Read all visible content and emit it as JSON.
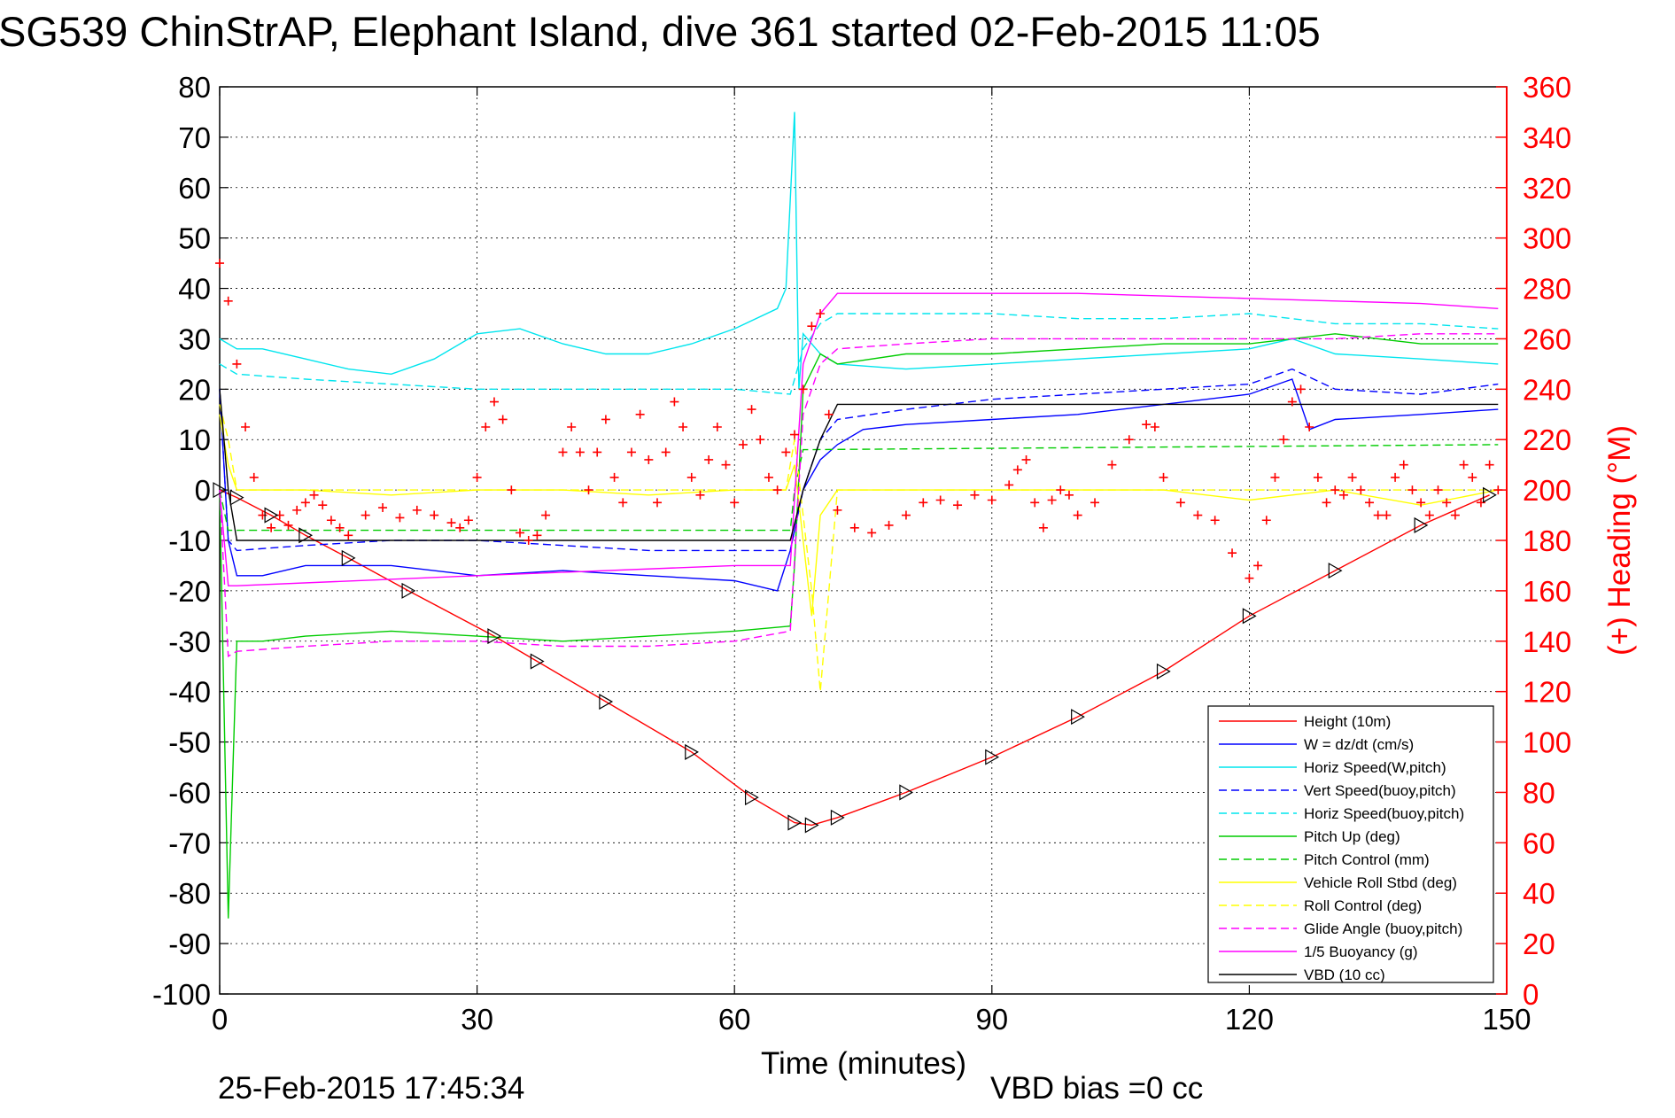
{
  "chart_data": {
    "type": "line",
    "title": "SG539 ChinStrAP, Elephant Island, dive 361 started 02-Feb-2015 11:05",
    "xlabel": "Time (minutes)",
    "ylabel_right": "(+) Heading (°M)",
    "xlim": [
      0,
      150
    ],
    "ylim_left": [
      -100,
      80
    ],
    "ylim_right": [
      0,
      360
    ],
    "x_ticks": [
      0,
      30,
      60,
      90,
      120,
      150
    ],
    "y_ticks_left": [
      80,
      70,
      60,
      50,
      40,
      30,
      20,
      10,
      0,
      -10,
      -20,
      -30,
      -40,
      -50,
      -60,
      -70,
      -80,
      -90,
      -100
    ],
    "y_ticks_right": [
      360,
      340,
      320,
      300,
      280,
      260,
      240,
      220,
      200,
      180,
      160,
      140,
      120,
      100,
      80,
      60,
      40,
      20,
      0
    ],
    "grid": true,
    "legend_position": "bottom-right",
    "footer_date": "25-Feb-2015 17:45:34",
    "footer_bias": "VBD bias =0 cc",
    "series": [
      {
        "name": "Height (10m)",
        "color": "#ff0000",
        "dash": "solid",
        "x": [
          0,
          2,
          6,
          10,
          15,
          22,
          32,
          37,
          45,
          55,
          62,
          67,
          69,
          72,
          80,
          90,
          100,
          110,
          120,
          130,
          140,
          148
        ],
        "y": [
          0,
          -1.5,
          -5,
          -9,
          -13.5,
          -20,
          -29,
          -34,
          -42,
          -52,
          -61,
          -66,
          -66.5,
          -65,
          -60,
          -53,
          -45,
          -36,
          -25,
          -16,
          -7,
          -1
        ]
      },
      {
        "name": "W = dz/dt (cm/s)",
        "color": "#0000ff",
        "dash": "solid",
        "x": [
          0,
          0.5,
          1,
          2,
          5,
          10,
          20,
          30,
          40,
          50,
          60,
          65,
          66.5,
          68,
          70,
          72,
          75,
          80,
          90,
          100,
          110,
          120,
          125,
          127,
          130,
          140,
          149
        ],
        "y": [
          20,
          5,
          -10,
          -17,
          -17,
          -15,
          -15,
          -17,
          -16,
          -17,
          -18,
          -20,
          -12,
          0,
          6,
          9,
          12,
          13,
          14,
          15,
          17,
          19,
          22,
          12,
          14,
          15,
          16
        ]
      },
      {
        "name": "Horiz Speed(W,pitch)",
        "color": "#00e5ee",
        "dash": "solid",
        "x": [
          0,
          2,
          5,
          10,
          15,
          20,
          25,
          30,
          35,
          40,
          45,
          50,
          55,
          60,
          65,
          66,
          67,
          67.5,
          68,
          70,
          72,
          80,
          90,
          100,
          110,
          120,
          125,
          130,
          140,
          149
        ],
        "y": [
          30,
          28,
          28,
          26,
          24,
          23,
          26,
          31,
          32,
          29,
          27,
          27,
          29,
          32,
          36,
          40,
          75,
          20,
          31,
          27,
          25,
          24,
          25,
          26,
          27,
          28,
          30,
          27,
          26,
          25
        ]
      },
      {
        "name": "Vert Speed(buoy,pitch)",
        "color": "#0000ff",
        "dash": "dashed",
        "x": [
          0,
          1,
          2,
          10,
          20,
          30,
          40,
          50,
          60,
          66.5,
          68,
          70,
          72,
          80,
          90,
          100,
          110,
          120,
          125,
          130,
          140,
          149
        ],
        "y": [
          20,
          -10,
          -12,
          -11,
          -10,
          -10,
          -11,
          -12,
          -12,
          -12,
          0,
          10,
          14,
          16,
          18,
          19,
          20,
          21,
          24,
          20,
          19,
          21
        ]
      },
      {
        "name": "Horiz Speed(buoy,pitch)",
        "color": "#00e5ee",
        "dash": "dashed",
        "x": [
          0,
          2,
          10,
          20,
          30,
          40,
          50,
          60,
          66.5,
          68,
          70,
          72,
          80,
          90,
          100,
          110,
          120,
          130,
          140,
          149
        ],
        "y": [
          25,
          23,
          22,
          21,
          20,
          20,
          20,
          20,
          19,
          28,
          33,
          35,
          35,
          35,
          34,
          34,
          35,
          33,
          33,
          32
        ]
      },
      {
        "name": "Pitch Up (deg)",
        "color": "#00cc00",
        "dash": "solid",
        "x": [
          0,
          1,
          2,
          5,
          10,
          20,
          30,
          40,
          50,
          60,
          66.5,
          67,
          68,
          70,
          72,
          80,
          90,
          100,
          110,
          120,
          125,
          130,
          140,
          149
        ],
        "y": [
          0,
          -85,
          -30,
          -30,
          -29,
          -28,
          -29,
          -30,
          -29,
          -28,
          -27,
          -15,
          20,
          27,
          25,
          27,
          27,
          28,
          29,
          29,
          30,
          31,
          29,
          29
        ]
      },
      {
        "name": "Pitch Control (mm)",
        "color": "#00cc00",
        "dash": "dashed",
        "x": [
          0,
          1,
          66.5,
          67,
          68,
          149
        ],
        "y": [
          0,
          -8,
          -8,
          0,
          8,
          9
        ]
      },
      {
        "name": "Vehicle Roll Stbd (deg)",
        "color": "#ffff00",
        "dash": "solid",
        "x": [
          0,
          1,
          2,
          10,
          20,
          30,
          40,
          50,
          60,
          66,
          67,
          69,
          70,
          72,
          80,
          90,
          100,
          110,
          120,
          130,
          140,
          149
        ],
        "y": [
          15,
          5,
          0,
          0,
          -1,
          0,
          0,
          -1,
          0,
          0,
          5,
          -25,
          -5,
          0,
          0,
          0,
          0,
          0,
          -2,
          0,
          -3,
          0
        ]
      },
      {
        "name": "Roll Control (deg)",
        "color": "#ffff00",
        "dash": "dashed",
        "x": [
          0,
          1,
          2,
          10,
          20,
          30,
          40,
          50,
          60,
          66,
          67,
          69,
          70,
          72,
          80,
          90,
          100,
          110,
          120,
          130,
          140,
          149
        ],
        "y": [
          17,
          10,
          0,
          0,
          0,
          0,
          0,
          0,
          0,
          0,
          10,
          -20,
          -40,
          0,
          0,
          0,
          0,
          0,
          0,
          0,
          0,
          0
        ]
      },
      {
        "name": "Glide Angle (buoy,pitch)",
        "color": "#ff00ff",
        "dash": "dashed",
        "x": [
          0,
          1,
          2,
          10,
          20,
          30,
          40,
          50,
          60,
          66.5,
          68,
          70,
          72,
          80,
          90,
          100,
          110,
          120,
          130,
          140,
          149
        ],
        "y": [
          0,
          -33,
          -32,
          -31,
          -30,
          -30,
          -31,
          -31,
          -30,
          -28,
          15,
          25,
          28,
          29,
          30,
          30,
          30,
          30,
          30,
          31,
          31
        ]
      },
      {
        "name": "1/5 Buoyancy (g)",
        "color": "#ff00ff",
        "dash": "solid",
        "x": [
          0,
          1,
          2,
          30,
          60,
          66.5,
          68,
          70,
          72,
          100,
          120,
          140,
          149
        ],
        "y": [
          0,
          -19,
          -19,
          -17,
          -15,
          -15,
          25,
          35,
          39,
          39,
          38,
          37,
          36
        ]
      },
      {
        "name": "VBD (10 cc)",
        "color": "#000000",
        "dash": "solid",
        "x": [
          0,
          1,
          2,
          66.5,
          68,
          70,
          72,
          149
        ],
        "y": [
          20,
          0,
          -10,
          -10,
          0,
          10,
          17,
          17
        ]
      }
    ],
    "heading": {
      "name": "(+) Heading (°M)",
      "color": "#ff0000",
      "marker": "+",
      "x": [
        0,
        1,
        2,
        3,
        4,
        5,
        6,
        7,
        8,
        9,
        10,
        11,
        12,
        13,
        14,
        15,
        17,
        19,
        21,
        23,
        25,
        27,
        28,
        29,
        30,
        31,
        32,
        33,
        34,
        35,
        36,
        37,
        38,
        40,
        41,
        42,
        43,
        44,
        45,
        46,
        47,
        48,
        49,
        50,
        51,
        52,
        53,
        54,
        55,
        56,
        57,
        58,
        59,
        60,
        61,
        62,
        63,
        64,
        65,
        66,
        67,
        68,
        69,
        70,
        71,
        72,
        74,
        76,
        78,
        80,
        82,
        84,
        86,
        88,
        90,
        92,
        93,
        94,
        95,
        96,
        97,
        98,
        99,
        100,
        102,
        104,
        106,
        108,
        109,
        110,
        112,
        114,
        116,
        118,
        120,
        121,
        122,
        123,
        124,
        125,
        126,
        127,
        128,
        129,
        130,
        131,
        132,
        133,
        134,
        135,
        136,
        137,
        138,
        139,
        140,
        141,
        142,
        143,
        144,
        145,
        146,
        147,
        148,
        149
      ],
      "y": [
        290,
        275,
        250,
        225,
        205,
        190,
        185,
        190,
        186,
        192,
        195,
        198,
        194,
        188,
        185,
        182,
        190,
        193,
        189,
        192,
        190,
        187,
        185,
        188,
        205,
        225,
        235,
        228,
        200,
        183,
        180,
        182,
        190,
        215,
        225,
        215,
        200,
        215,
        228,
        205,
        195,
        215,
        230,
        212,
        195,
        215,
        235,
        225,
        205,
        198,
        212,
        225,
        210,
        195,
        218,
        232,
        220,
        205,
        200,
        215,
        222,
        240,
        265,
        270,
        230,
        192,
        185,
        183,
        186,
        190,
        195,
        196,
        194,
        198,
        196,
        202,
        208,
        212,
        195,
        185,
        196,
        200,
        198,
        190,
        195,
        210,
        220,
        226,
        225,
        205,
        195,
        190,
        188,
        175,
        165,
        170,
        188,
        205,
        220,
        235,
        240,
        225,
        205,
        195,
        200,
        198,
        205,
        200,
        195,
        190,
        190,
        205,
        210,
        200,
        195,
        190,
        200,
        195,
        190,
        210,
        205,
        195,
        210,
        200
      ]
    }
  }
}
